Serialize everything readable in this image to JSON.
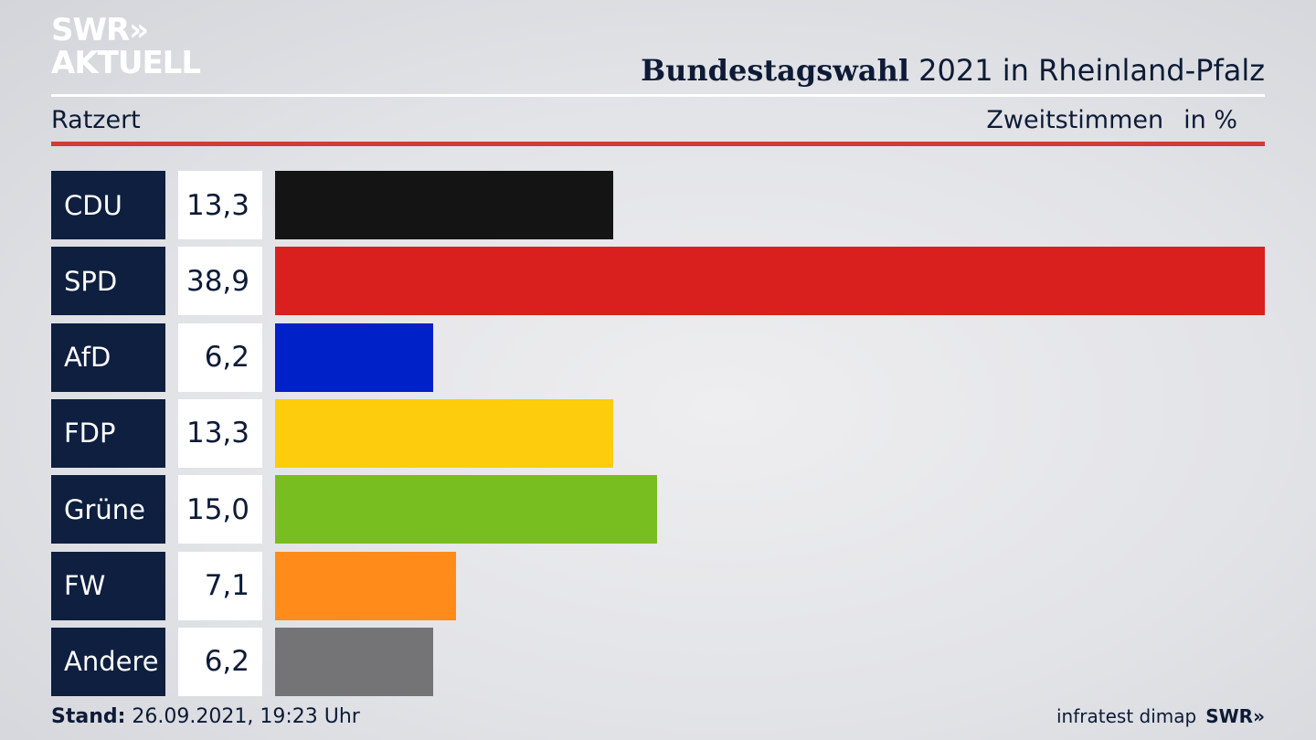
{
  "header": {
    "logo_line1": "SWR»",
    "logo_line2": "AKTUELL",
    "title_bold": "Bundestagswahl",
    "title_rest": " 2021 in Rheinland-Pfalz",
    "subtitle": "Ratzert",
    "measure": "Zweitstimmen",
    "unit": "in %"
  },
  "colors": {
    "party_box": "#0e1f3f",
    "rule": "#cf3d34"
  },
  "chart_data": {
    "type": "bar",
    "orientation": "horizontal",
    "title": "Bundestagswahl 2021 in Rheinland-Pfalz",
    "categories": [
      "CDU",
      "SPD",
      "AfD",
      "FDP",
      "Grüne",
      "FW",
      "Andere"
    ],
    "values": [
      13.3,
      38.9,
      6.2,
      13.3,
      15.0,
      7.1,
      6.2
    ],
    "value_labels": [
      "13,3",
      "38,9",
      "6,2",
      "13,3",
      "15,0",
      "7,1",
      "6,2"
    ],
    "colors": [
      "#141414",
      "#d9201f",
      "#0021c7",
      "#fdcc0c",
      "#78be20",
      "#ff8c1a",
      "#747476"
    ],
    "xlim": [
      0,
      38.9
    ]
  },
  "footer": {
    "stand_label": "Stand:",
    "stand_value": " 26.09.2021, 19:23 Uhr",
    "source": "infratest dimap",
    "brand": "SWR»"
  }
}
